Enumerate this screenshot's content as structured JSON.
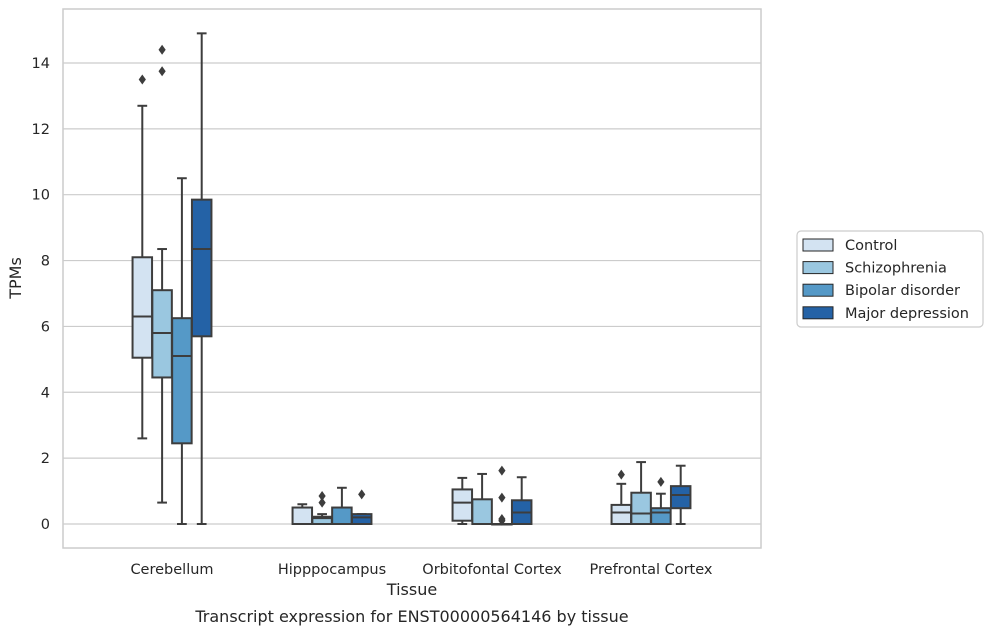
{
  "caption": "Transcript expression for ENST00000564146 by tissue",
  "colors": {
    "Control": "#d3e3f2",
    "Schizophrenia": "#9ac7e0",
    "Bipolar disorder": "#5599c7",
    "Major depression": "#2462a6",
    "edge": "#3d3d3d",
    "grid": "#cccccc"
  },
  "chart_data": {
    "type": "boxplot",
    "title": "",
    "xlabel": "Tissue",
    "ylabel": "TPMs",
    "ylim": [
      -0.7,
      15.6
    ],
    "yticks": [
      0,
      2,
      4,
      6,
      8,
      10,
      12,
      14
    ],
    "grid": "horizontal",
    "legend_position": "right",
    "categories": [
      "Cerebellum",
      "Hipppocampus",
      "Orbitofontal Cortex",
      "Prefrontal Cortex"
    ],
    "series": [
      {
        "name": "Control",
        "boxes": [
          {
            "whislo": 2.6,
            "q1": 5.05,
            "med": 6.3,
            "q3": 8.1,
            "whishi": 12.7,
            "fliers": [
              13.5
            ]
          },
          {
            "whislo": 0,
            "q1": 0,
            "med": 0,
            "q3": 0.5,
            "whishi": 0.6,
            "fliers": []
          },
          {
            "whislo": 0,
            "q1": 0.1,
            "med": 0.65,
            "q3": 1.05,
            "whishi": 1.4,
            "fliers": []
          },
          {
            "whislo": 0,
            "q1": 0,
            "med": 0.35,
            "q3": 0.58,
            "whishi": 1.22,
            "fliers": [
              1.5
            ]
          }
        ]
      },
      {
        "name": "Schizophrenia",
        "boxes": [
          {
            "whislo": 0.65,
            "q1": 4.45,
            "med": 5.8,
            "q3": 7.1,
            "whishi": 8.35,
            "fliers": [
              13.75,
              14.4
            ]
          },
          {
            "whislo": 0,
            "q1": 0,
            "med": 0.18,
            "q3": 0.22,
            "whishi": 0.3,
            "fliers": [
              0.65,
              0.85
            ]
          },
          {
            "whislo": 0,
            "q1": 0,
            "med": 0,
            "q3": 0.75,
            "whishi": 1.52,
            "fliers": []
          },
          {
            "whislo": 0,
            "q1": 0,
            "med": 0.32,
            "q3": 0.95,
            "whishi": 1.88,
            "fliers": []
          }
        ]
      },
      {
        "name": "Bipolar disorder",
        "boxes": [
          {
            "whislo": 0,
            "q1": 2.45,
            "med": 5.1,
            "q3": 6.25,
            "whishi": 10.5,
            "fliers": []
          },
          {
            "whislo": 0,
            "q1": 0,
            "med": 0,
            "q3": 0.5,
            "whishi": 1.1,
            "fliers": []
          },
          {
            "whislo": 0,
            "q1": 0,
            "med": 0,
            "q3": 0,
            "whishi": 0,
            "fliers": [
              0.1,
              0.15,
              0.8,
              1.62
            ]
          },
          {
            "whislo": 0,
            "q1": 0,
            "med": 0.35,
            "q3": 0.48,
            "whishi": 0.92,
            "fliers": [
              1.28
            ]
          }
        ]
      },
      {
        "name": "Major depression",
        "boxes": [
          {
            "whislo": 0,
            "q1": 5.7,
            "med": 8.35,
            "q3": 9.85,
            "whishi": 14.9,
            "fliers": []
          },
          {
            "whislo": 0,
            "q1": 0,
            "med": 0.2,
            "q3": 0.3,
            "whishi": 0.3,
            "fliers": [
              0.9
            ]
          },
          {
            "whislo": 0,
            "q1": 0,
            "med": 0.35,
            "q3": 0.72,
            "whishi": 1.42,
            "fliers": []
          },
          {
            "whislo": 0,
            "q1": 0.48,
            "med": 0.88,
            "q3": 1.15,
            "whishi": 1.77,
            "fliers": []
          }
        ]
      }
    ]
  }
}
